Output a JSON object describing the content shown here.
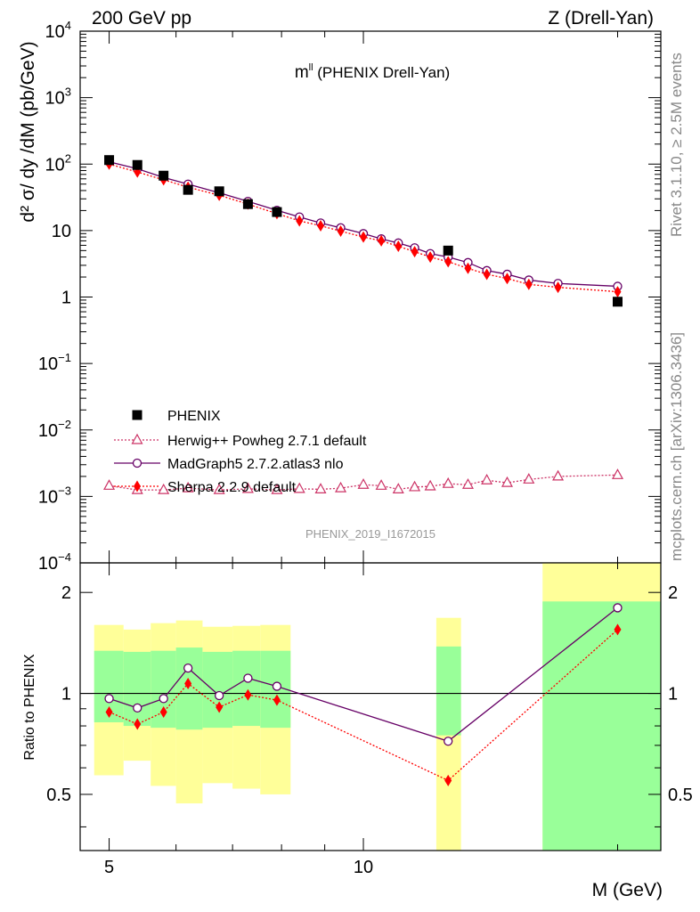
{
  "header": {
    "left": "200 GeV pp",
    "right": "Z (Drell-Yan)"
  },
  "side_text": {
    "top": "Rivet 3.1.10, ≥ 2.5M events",
    "bottom": "mcplots.cern.ch [arXiv:1306.3436]"
  },
  "colors": {
    "phenix": "#000000",
    "herwig": "#cc3366",
    "madgraph": "#660066",
    "sherpa": "#ff0000",
    "band_inner": "#99ff99",
    "band_outer": "#ffff99"
  },
  "chart_data": [
    {
      "type": "scatter",
      "title": "m",
      "title_superscript": "ll",
      "title_suffix": " (PHENIX Drell-Yan)",
      "ylabel": "d² σ/ dy /dM (pb/GeV)",
      "yscale": "log",
      "ylim": [
        0.0001,
        10000
      ],
      "yticks": [
        {
          "v": 10000,
          "base": "10",
          "exp": "4"
        },
        {
          "v": 1000,
          "base": "10",
          "exp": "3"
        },
        {
          "v": 100,
          "base": "10",
          "exp": "2"
        },
        {
          "v": 10,
          "base": "10",
          "exp": ""
        },
        {
          "v": 1,
          "base": "1",
          "exp": ""
        },
        {
          "v": 0.1,
          "base": "10",
          "exp": "−1"
        },
        {
          "v": 0.01,
          "base": "10",
          "exp": "−2"
        },
        {
          "v": 0.001,
          "base": "10",
          "exp": "−3"
        },
        {
          "v": 0.0001,
          "base": "10",
          "exp": "−4"
        }
      ],
      "watermark": "PHENIX_2019_I1672015",
      "series": [
        {
          "name": "PHENIX",
          "marker": "square",
          "color": "#000000",
          "x": [
            5.0,
            5.4,
            5.8,
            6.2,
            6.75,
            7.3,
            7.9,
            12.6,
            20.0
          ],
          "y": [
            115,
            97,
            67,
            41,
            39,
            25,
            19,
            5.0,
            0.85
          ]
        },
        {
          "name": "Herwig++ Powheg 2.7.1 default",
          "marker": "triangle",
          "color": "#cc3366",
          "line": "dotted",
          "x": [
            5.0,
            5.4,
            5.8,
            6.2,
            6.75,
            7.3,
            7.9,
            8.4,
            8.9,
            9.4,
            10.0,
            10.5,
            11.0,
            11.5,
            12.0,
            12.6,
            13.3,
            14.0,
            14.8,
            15.7,
            17.0,
            20.0
          ],
          "y": [
            0.00145,
            0.00125,
            0.00125,
            0.00133,
            0.00125,
            0.0013,
            0.00125,
            0.0013,
            0.00128,
            0.00133,
            0.0015,
            0.00145,
            0.00128,
            0.00138,
            0.00142,
            0.00155,
            0.0015,
            0.00175,
            0.0016,
            0.0018,
            0.002,
            0.0021
          ]
        },
        {
          "name": "MadGraph5 2.7.2.atlas3 nlo",
          "marker": "circle",
          "color": "#660066",
          "line": "solid",
          "x": [
            5.0,
            5.4,
            5.8,
            6.2,
            6.75,
            7.3,
            7.9,
            8.4,
            8.9,
            9.4,
            10.0,
            10.5,
            11.0,
            11.5,
            12.0,
            12.6,
            13.3,
            14.0,
            14.8,
            15.7,
            17.0,
            20.0
          ],
          "y": [
            108,
            85,
            63,
            50,
            37,
            27.5,
            20.2,
            16,
            13,
            11,
            9,
            7.5,
            6.5,
            5.5,
            4.5,
            4,
            3.3,
            2.5,
            2.2,
            1.8,
            1.6,
            1.45
          ]
        },
        {
          "name": "Sherpa 2.2.9 default",
          "marker": "diamond",
          "color": "#ff0000",
          "line": "dotted",
          "x": [
            5.0,
            5.4,
            5.8,
            6.2,
            6.75,
            7.3,
            7.9,
            8.4,
            8.9,
            9.4,
            10.0,
            10.5,
            11.0,
            11.5,
            12.0,
            12.6,
            13.3,
            14.0,
            14.8,
            15.7,
            17.0,
            20.0
          ],
          "y": [
            100,
            76,
            58,
            45,
            34,
            25,
            18,
            14,
            11.8,
            9.8,
            8,
            7,
            5.8,
            4.8,
            4,
            3.4,
            2.7,
            2.2,
            1.9,
            1.55,
            1.4,
            1.2
          ]
        }
      ]
    },
    {
      "type": "scatter",
      "ylabel": "Ratio to PHENIX",
      "xlabel": "M (GeV)",
      "yscale": "log",
      "ylim": [
        0.34,
        2.45
      ],
      "yticks": [
        {
          "v": 0.5,
          "label": "0.5"
        },
        {
          "v": 1,
          "label": "1"
        },
        {
          "v": 2,
          "label": "2"
        }
      ],
      "xscale": "log",
      "xlim": [
        4.62,
        22.5
      ],
      "xticks": [
        {
          "v": 5,
          "label": "5"
        },
        {
          "v": 10,
          "label": "10"
        }
      ],
      "reference_line": 1,
      "bands": [
        {
          "x": [
            4.8,
            5.2
          ],
          "inner": [
            0.82,
            1.34
          ],
          "outer": [
            0.57,
            1.6
          ]
        },
        {
          "x": [
            5.2,
            5.6
          ],
          "inner": [
            0.8,
            1.33
          ],
          "outer": [
            0.63,
            1.55
          ]
        },
        {
          "x": [
            5.6,
            6.0
          ],
          "inner": [
            0.79,
            1.34
          ],
          "outer": [
            0.53,
            1.62
          ]
        },
        {
          "x": [
            6.0,
            6.45
          ],
          "inner": [
            0.78,
            1.37
          ],
          "outer": [
            0.47,
            1.65
          ]
        },
        {
          "x": [
            6.45,
            7.0
          ],
          "inner": [
            0.79,
            1.33
          ],
          "outer": [
            0.54,
            1.58
          ]
        },
        {
          "x": [
            7.0,
            7.55
          ],
          "inner": [
            0.8,
            1.34
          ],
          "outer": [
            0.52,
            1.59
          ]
        },
        {
          "x": [
            7.55,
            8.2
          ],
          "inner": [
            0.79,
            1.34
          ],
          "outer": [
            0.5,
            1.6
          ]
        },
        {
          "x": [
            12.2,
            13.05
          ],
          "inner": [
            0.75,
            1.38
          ],
          "outer": [
            0.34,
            1.68
          ]
        },
        {
          "x": [
            16.3,
            22.5
          ],
          "inner": [
            0.34,
            1.88
          ],
          "outer": [
            0.34,
            2.45
          ]
        }
      ],
      "series": [
        {
          "name": "MadGraph5 2.7.2.atlas3 nlo",
          "marker": "circle",
          "color": "#660066",
          "line": "solid",
          "x": [
            5.0,
            5.4,
            5.8,
            6.2,
            6.75,
            7.3,
            7.9,
            12.6,
            20.0
          ],
          "y": [
            0.965,
            0.905,
            0.965,
            1.19,
            0.985,
            1.11,
            1.05,
            0.72,
            1.8
          ]
        },
        {
          "name": "Sherpa 2.2.9 default",
          "marker": "diamond",
          "color": "#ff0000",
          "line": "dotted",
          "x": [
            5.0,
            5.4,
            5.8,
            6.2,
            6.75,
            7.3,
            7.9,
            12.6,
            20.0
          ],
          "y": [
            0.88,
            0.81,
            0.88,
            1.07,
            0.91,
            0.99,
            0.955,
            0.55,
            1.55
          ]
        }
      ]
    }
  ]
}
